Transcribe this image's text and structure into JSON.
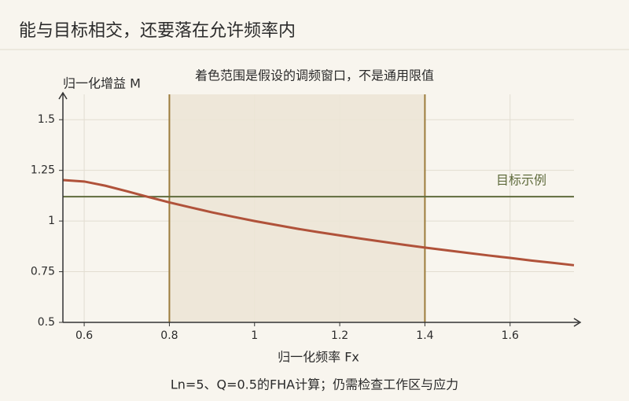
{
  "chart_data": {
    "type": "line",
    "title": "能与目标相交，还要落在允许频率内",
    "annotation": "着色范围是假设的调频窗口，不是通用限值",
    "ylabel": "归一化增益 M",
    "xlabel": "归一化频率 Fx",
    "note": "Ln=5、Q=0.5的FHA计算；仍需检查工作区与应力",
    "x": [
      0.55,
      0.6,
      0.65,
      0.7,
      0.75,
      0.8,
      0.85,
      0.9,
      0.95,
      1.0,
      1.05,
      1.1,
      1.15,
      1.2,
      1.25,
      1.3,
      1.35,
      1.4,
      1.45,
      1.5,
      1.55,
      1.6,
      1.65,
      1.7,
      1.75
    ],
    "values": [
      1.202,
      1.195,
      1.174,
      1.147,
      1.119,
      1.092,
      1.067,
      1.043,
      1.021,
      1.0,
      0.981,
      0.962,
      0.945,
      0.929,
      0.913,
      0.898,
      0.883,
      0.869,
      0.856,
      0.843,
      0.83,
      0.818,
      0.805,
      0.794,
      0.782
    ],
    "color": "#b0523a",
    "band": {
      "range": [
        0.8,
        1.4
      ],
      "color": "#ece6d6",
      "edge_color": "#9c7c3c"
    },
    "target": {
      "value": 1.12,
      "label": "目标示例",
      "color": "#5f6b3c"
    },
    "xlim": [
      0.55,
      1.75
    ],
    "ylim": [
      0.5,
      1.625
    ],
    "xticks": [
      0.6,
      0.8,
      1,
      1.2,
      1.4,
      1.6
    ],
    "yticks": [
      0.5,
      0.75,
      1,
      1.25,
      1.5
    ],
    "grid": true
  }
}
